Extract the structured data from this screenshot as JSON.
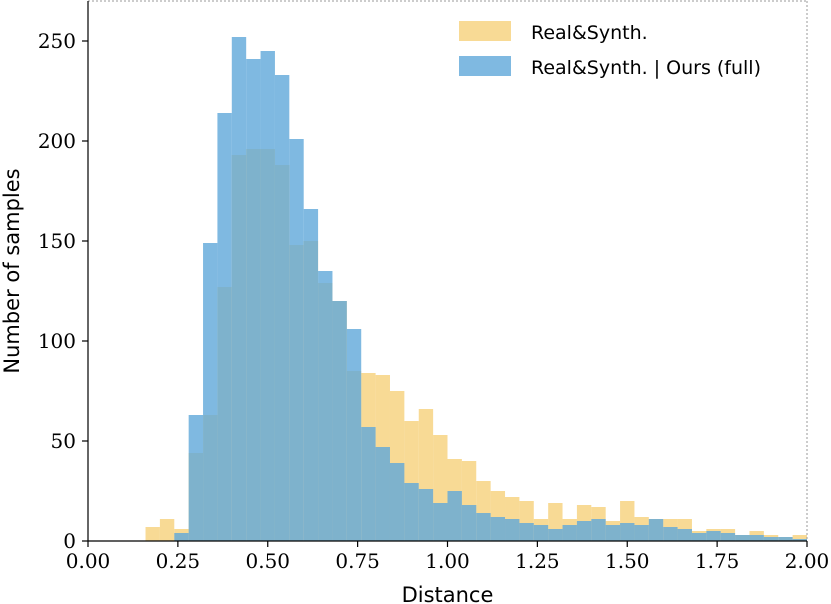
{
  "chart_data": {
    "type": "histogram",
    "xlabel": "Distance",
    "ylabel": "Number of samples",
    "xlim": [
      0,
      2.0
    ],
    "ylim": [
      0,
      270
    ],
    "xticks": [
      0,
      0.25,
      0.5,
      0.75,
      1.0,
      1.25,
      1.5,
      1.75,
      2.0
    ],
    "xtick_labels": [
      "0.00",
      "0.25",
      "0.50",
      "0.75",
      "1.00",
      "1.25",
      "1.50",
      "1.75",
      "2.00"
    ],
    "yticks": [
      0,
      50,
      100,
      150,
      200,
      250
    ],
    "ytick_labels": [
      "0",
      "50",
      "100",
      "150",
      "200",
      "250"
    ],
    "bin_width": 0.04,
    "legend_position": "top-right",
    "series": [
      {
        "name": "Real&Synth.",
        "color": "#f5cd72",
        "opacity": 0.75,
        "bin_starts": [
          0.16,
          0.2,
          0.24,
          0.28,
          0.32,
          0.36,
          0.4,
          0.44,
          0.48,
          0.52,
          0.56,
          0.6,
          0.64,
          0.68,
          0.72,
          0.76,
          0.8,
          0.84,
          0.88,
          0.92,
          0.96,
          1.0,
          1.04,
          1.08,
          1.12,
          1.16,
          1.2,
          1.24,
          1.28,
          1.32,
          1.36,
          1.4,
          1.44,
          1.48,
          1.52,
          1.56,
          1.6,
          1.64,
          1.68,
          1.72,
          1.76,
          1.8,
          1.84,
          1.88,
          1.92,
          1.96
        ],
        "values": [
          7,
          11,
          6,
          44,
          63,
          127,
          193,
          196,
          196,
          188,
          148,
          150,
          129,
          120,
          85,
          84,
          83,
          75,
          60,
          66,
          53,
          41,
          40,
          30,
          25,
          22,
          20,
          11,
          19,
          11,
          18,
          17,
          10,
          20,
          12,
          11,
          11,
          11,
          5,
          6,
          6,
          3,
          5,
          3,
          2,
          3
        ]
      },
      {
        "name": "Real&Synth. | Ours (full)",
        "color": "#5fa7da",
        "opacity": 0.8,
        "bin_starts": [
          0.16,
          0.2,
          0.24,
          0.28,
          0.32,
          0.36,
          0.4,
          0.44,
          0.48,
          0.52,
          0.56,
          0.6,
          0.64,
          0.68,
          0.72,
          0.76,
          0.8,
          0.84,
          0.88,
          0.92,
          0.96,
          1.0,
          1.04,
          1.08,
          1.12,
          1.16,
          1.2,
          1.24,
          1.28,
          1.32,
          1.36,
          1.4,
          1.44,
          1.48,
          1.52,
          1.56,
          1.6,
          1.64,
          1.68,
          1.72,
          1.76,
          1.8,
          1.84,
          1.88,
          1.92,
          1.96
        ],
        "values": [
          0,
          0,
          4,
          63,
          149,
          214,
          252,
          241,
          245,
          233,
          201,
          166,
          135,
          120,
          106,
          57,
          47,
          39,
          29,
          26,
          19,
          25,
          18,
          14,
          12,
          11,
          9,
          8,
          6,
          8,
          10,
          11,
          8,
          9,
          8,
          11,
          7,
          6,
          4,
          5,
          4,
          3,
          3,
          2,
          2,
          1
        ]
      }
    ]
  }
}
